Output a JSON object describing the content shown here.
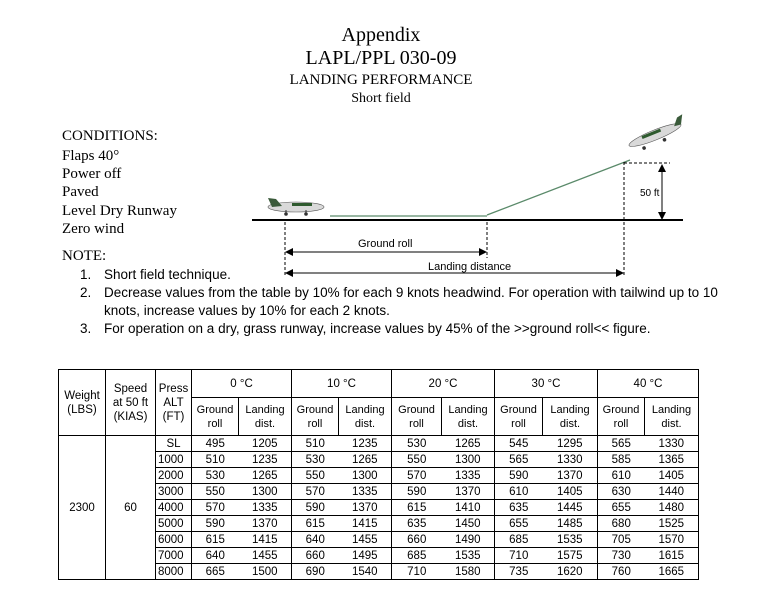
{
  "header": {
    "line1": "Appendix",
    "line2": "LAPL/PPL 030-09",
    "line3": "LANDING PERFORMANCE",
    "line4": "Short field"
  },
  "conditions": {
    "heading": "CONDITIONS:",
    "items": [
      "Flaps 40°",
      "Power off",
      "Paved",
      "Level Dry Runway",
      "Zero wind"
    ]
  },
  "diagram": {
    "ground_roll": "Ground roll",
    "landing_distance": "Landing distance",
    "height": "50 ft"
  },
  "note": {
    "heading": "NOTE:",
    "items": [
      {
        "num": "1.",
        "text": "Short field technique."
      },
      {
        "num": "2.",
        "text": "Decrease values from the table by 10% for each 9 knots headwind. For operation with tailwind up to 10 knots, increase values by 10% for each 2 knots."
      },
      {
        "num": "3.",
        "text": "For operation on a dry, grass runway, increase values by 45% of the >>ground roll<< figure."
      }
    ]
  },
  "table": {
    "weight_label": "Weight (LBS)",
    "speed_label": "Speed at 50 ft (KIAS)",
    "press_label": "Press ALT (FT)",
    "temps": [
      "0 °C",
      "10 °C",
      "20 °C",
      "30 °C",
      "40 °C"
    ],
    "sub_ground": "Ground roll",
    "sub_landing": "Landing dist.",
    "weight": "2300",
    "speed": "60",
    "rows": [
      {
        "alt": "SL",
        "v": [
          "495",
          "1205",
          "510",
          "1235",
          "530",
          "1265",
          "545",
          "1295",
          "565",
          "1330"
        ]
      },
      {
        "alt": "1000",
        "v": [
          "510",
          "1235",
          "530",
          "1265",
          "550",
          "1300",
          "565",
          "1330",
          "585",
          "1365"
        ]
      },
      {
        "alt": "2000",
        "v": [
          "530",
          "1265",
          "550",
          "1300",
          "570",
          "1335",
          "590",
          "1370",
          "610",
          "1405"
        ]
      },
      {
        "alt": "3000",
        "v": [
          "550",
          "1300",
          "570",
          "1335",
          "590",
          "1370",
          "610",
          "1405",
          "630",
          "1440"
        ]
      },
      {
        "alt": "4000",
        "v": [
          "570",
          "1335",
          "590",
          "1370",
          "615",
          "1410",
          "635",
          "1445",
          "655",
          "1480"
        ]
      },
      {
        "alt": "5000",
        "v": [
          "590",
          "1370",
          "615",
          "1415",
          "635",
          "1450",
          "655",
          "1485",
          "680",
          "1525"
        ]
      },
      {
        "alt": "6000",
        "v": [
          "615",
          "1415",
          "640",
          "1455",
          "660",
          "1490",
          "685",
          "1535",
          "705",
          "1570"
        ]
      },
      {
        "alt": "7000",
        "v": [
          "640",
          "1455",
          "660",
          "1495",
          "685",
          "1535",
          "710",
          "1575",
          "730",
          "1615"
        ]
      },
      {
        "alt": "8000",
        "v": [
          "665",
          "1500",
          "690",
          "1540",
          "710",
          "1580",
          "735",
          "1620",
          "760",
          "1665"
        ]
      }
    ]
  }
}
